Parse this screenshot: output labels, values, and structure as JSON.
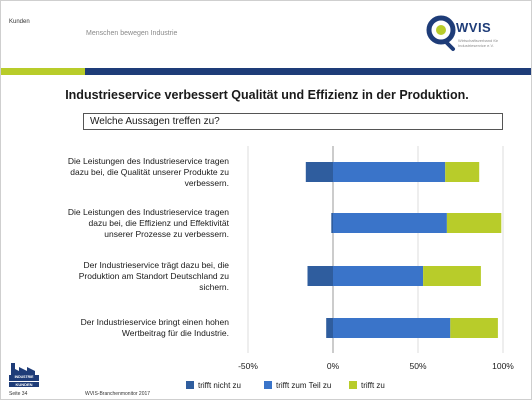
{
  "header": {
    "section_label": "Kunden",
    "tagline": "Menschen bewegen Industrie",
    "logo_text": "WVIS",
    "logo_subtext": "Wirtschaftsverband für Industrieservice e.V."
  },
  "headline": "Industrieservice verbessert Qualität und Effizienz in der Produktion.",
  "question": "Welche Aussagen treffen zu?",
  "chart_data": {
    "type": "bar",
    "orientation": "horizontal",
    "stacked": "diverging",
    "categories": [
      "Die Leistungen des Industrieservice tragen dazu bei, die Qualität unserer Produkte zu verbessern.",
      "Die Leistungen des Industrieservice tragen dazu bei, die Effizienz und Effektivität unserer Prozesse zu verbessern.",
      "Der Industrieservice trägt dazu bei, die Produktion am Standort Deutschland zu sichern.",
      "Der Industrieservice bringt einen hohen Wertbeitrag für die Industrie."
    ],
    "category_lines": [
      [
        "Die Leistungen des Industrieservice tragen",
        "dazu bei, die Qualität unserer Produkte zu",
        "verbessern."
      ],
      [
        "Die Leistungen des Industrieservice tragen",
        "dazu bei, die Effizienz und Effektivität",
        "unserer Prozesse zu verbessern."
      ],
      [
        "Der Industrieservice trägt dazu bei, die",
        "Produktion am Standort Deutschland zu",
        "sichern."
      ],
      [
        "Der Industrieservice bringt einen hohen",
        "Wertbeitrag für die Industrie."
      ]
    ],
    "series": [
      {
        "name": "trifft nicht zu",
        "color": "#2f5d9e",
        "values": [
          -16,
          -1,
          -15,
          -4
        ]
      },
      {
        "name": "trifft zum Teil zu",
        "color": "#3a74c9",
        "values": [
          66,
          67,
          53,
          69
        ]
      },
      {
        "name": "trifft zu",
        "color": "#b8cc2a",
        "values": [
          20,
          32,
          34,
          28
        ]
      }
    ],
    "xlim": [
      -50,
      100
    ],
    "xticks": [
      "-50%",
      "0%",
      "50%",
      "100%"
    ],
    "xtick_values": [
      -50,
      0,
      50,
      100
    ],
    "legend_position": "bottom"
  },
  "footer": {
    "page": "Seite 34",
    "source": "WVIS-Branchenmonitor 2017",
    "badge_top": "INDUSTRIE",
    "badge_bottom": "KUNDEN"
  }
}
